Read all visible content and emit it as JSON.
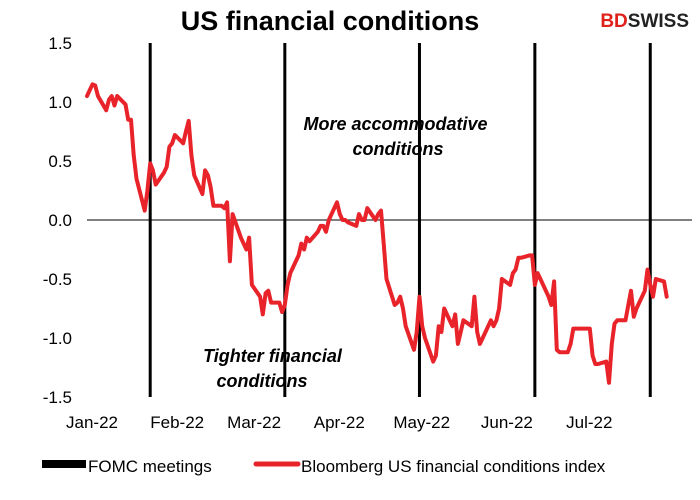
{
  "chart_data": {
    "type": "line",
    "title": "US financial conditions",
    "xlabel": "",
    "ylabel": "",
    "ylim": [
      -1.5,
      1.5
    ],
    "yticks": [
      -1.5,
      -1.0,
      -0.5,
      0.0,
      0.5,
      1.0,
      1.5
    ],
    "ytick_labels": [
      "-1.5",
      "-1.0",
      "-0.5",
      "0.0",
      "0.5",
      "1.0",
      "1.5"
    ],
    "x_range": [
      "2022-01-03",
      "2022-08-01"
    ],
    "xticks": [
      {
        "date": "2022-01-03",
        "label": "Jan-22"
      },
      {
        "date": "2022-02-03",
        "label": "Feb-22"
      },
      {
        "date": "2022-03-03",
        "label": "Mar-22"
      },
      {
        "date": "2022-04-03",
        "label": "Apr-22"
      },
      {
        "date": "2022-05-03",
        "label": "May-22"
      },
      {
        "date": "2022-06-03",
        "label": "Jun-22"
      },
      {
        "date": "2022-07-03",
        "label": "Jul-22"
      }
    ],
    "grid": false,
    "legend_position": "bottom",
    "annotations": [
      {
        "lines": [
          "More accommodative",
          "conditions"
        ]
      },
      {
        "lines": [
          "Tighter financial",
          "conditions"
        ]
      }
    ],
    "series": [
      {
        "name": "FOMC meetings",
        "type": "vertical-lines",
        "color": "#000000",
        "dates": [
          "2022-01-26",
          "2022-03-16",
          "2022-05-04",
          "2022-06-15",
          "2022-07-27"
        ]
      },
      {
        "name": "Bloomberg US financial conditions index",
        "type": "line",
        "color": "#e8232a",
        "points": [
          [
            "2022-01-03",
            1.05
          ],
          [
            "2022-01-04",
            1.1
          ],
          [
            "2022-01-05",
            1.15
          ],
          [
            "2022-01-06",
            1.14
          ],
          [
            "2022-01-07",
            1.05
          ],
          [
            "2022-01-10",
            0.93
          ],
          [
            "2022-01-11",
            1.02
          ],
          [
            "2022-01-12",
            1.05
          ],
          [
            "2022-01-13",
            0.97
          ],
          [
            "2022-01-14",
            1.05
          ],
          [
            "2022-01-17",
            0.98
          ],
          [
            "2022-01-18",
            0.85
          ],
          [
            "2022-01-19",
            0.85
          ],
          [
            "2022-01-20",
            0.55
          ],
          [
            "2022-01-21",
            0.35
          ],
          [
            "2022-01-24",
            0.08
          ],
          [
            "2022-01-25",
            0.25
          ],
          [
            "2022-01-26",
            0.48
          ],
          [
            "2022-01-27",
            0.42
          ],
          [
            "2022-01-28",
            0.3
          ],
          [
            "2022-01-31",
            0.4
          ],
          [
            "2022-02-01",
            0.45
          ],
          [
            "2022-02-02",
            0.62
          ],
          [
            "2022-02-03",
            0.65
          ],
          [
            "2022-02-04",
            0.72
          ],
          [
            "2022-02-07",
            0.65
          ],
          [
            "2022-02-08",
            0.75
          ],
          [
            "2022-02-09",
            0.84
          ],
          [
            "2022-02-10",
            0.55
          ],
          [
            "2022-02-11",
            0.38
          ],
          [
            "2022-02-14",
            0.22
          ],
          [
            "2022-02-15",
            0.42
          ],
          [
            "2022-02-16",
            0.38
          ],
          [
            "2022-02-17",
            0.28
          ],
          [
            "2022-02-18",
            0.12
          ],
          [
            "2022-02-21",
            0.12
          ],
          [
            "2022-02-22",
            0.1
          ],
          [
            "2022-02-23",
            0.15
          ],
          [
            "2022-02-24",
            -0.35
          ],
          [
            "2022-02-25",
            0.05
          ],
          [
            "2022-02-28",
            -0.15
          ],
          [
            "2022-03-01",
            -0.2
          ],
          [
            "2022-03-02",
            -0.25
          ],
          [
            "2022-03-03",
            -0.15
          ],
          [
            "2022-03-04",
            -0.55
          ],
          [
            "2022-03-07",
            -0.65
          ],
          [
            "2022-03-08",
            -0.8
          ],
          [
            "2022-03-09",
            -0.62
          ],
          [
            "2022-03-10",
            -0.6
          ],
          [
            "2022-03-11",
            -0.7
          ],
          [
            "2022-03-14",
            -0.7
          ],
          [
            "2022-03-15",
            -0.78
          ],
          [
            "2022-03-16",
            -0.72
          ],
          [
            "2022-03-17",
            -0.55
          ],
          [
            "2022-03-18",
            -0.45
          ],
          [
            "2022-03-21",
            -0.3
          ],
          [
            "2022-03-22",
            -0.2
          ],
          [
            "2022-03-23",
            -0.25
          ],
          [
            "2022-03-24",
            -0.15
          ],
          [
            "2022-03-25",
            -0.18
          ],
          [
            "2022-03-28",
            -0.1
          ],
          [
            "2022-03-29",
            -0.05
          ],
          [
            "2022-03-30",
            -0.05
          ],
          [
            "2022-03-31",
            -0.1
          ],
          [
            "2022-04-01",
            0.0
          ],
          [
            "2022-04-04",
            0.15
          ],
          [
            "2022-04-05",
            0.05
          ],
          [
            "2022-04-06",
            0.0
          ],
          [
            "2022-04-07",
            0.0
          ],
          [
            "2022-04-08",
            -0.02
          ],
          [
            "2022-04-11",
            -0.05
          ],
          [
            "2022-04-12",
            0.05
          ],
          [
            "2022-04-13",
            0.0
          ],
          [
            "2022-04-14",
            0.0
          ],
          [
            "2022-04-15",
            0.1
          ],
          [
            "2022-04-18",
            0.0
          ],
          [
            "2022-04-19",
            0.05
          ],
          [
            "2022-04-20",
            0.08
          ],
          [
            "2022-04-21",
            -0.2
          ],
          [
            "2022-04-22",
            -0.5
          ],
          [
            "2022-04-25",
            -0.72
          ],
          [
            "2022-04-26",
            -0.7
          ],
          [
            "2022-04-27",
            -0.65
          ],
          [
            "2022-04-28",
            -0.75
          ],
          [
            "2022-04-29",
            -0.9
          ],
          [
            "2022-05-02",
            -1.1
          ],
          [
            "2022-05-03",
            -0.95
          ],
          [
            "2022-05-04",
            -0.65
          ],
          [
            "2022-05-05",
            -0.9
          ],
          [
            "2022-05-06",
            -1.0
          ],
          [
            "2022-05-09",
            -1.2
          ],
          [
            "2022-05-10",
            -1.15
          ],
          [
            "2022-05-11",
            -0.9
          ],
          [
            "2022-05-12",
            -0.95
          ],
          [
            "2022-05-13",
            -0.75
          ],
          [
            "2022-05-16",
            -0.9
          ],
          [
            "2022-05-17",
            -0.8
          ],
          [
            "2022-05-18",
            -1.05
          ],
          [
            "2022-05-19",
            -0.95
          ],
          [
            "2022-05-20",
            -0.85
          ],
          [
            "2022-05-23",
            -0.9
          ],
          [
            "2022-05-24",
            -0.65
          ],
          [
            "2022-05-25",
            -0.95
          ],
          [
            "2022-05-26",
            -1.05
          ],
          [
            "2022-05-27",
            -1.0
          ],
          [
            "2022-05-30",
            -0.85
          ],
          [
            "2022-05-31",
            -0.9
          ],
          [
            "2022-06-01",
            -0.85
          ],
          [
            "2022-06-02",
            -0.75
          ],
          [
            "2022-06-03",
            -0.5
          ],
          [
            "2022-06-06",
            -0.55
          ],
          [
            "2022-06-07",
            -0.45
          ],
          [
            "2022-06-08",
            -0.42
          ],
          [
            "2022-06-09",
            -0.32
          ],
          [
            "2022-06-10",
            -0.32
          ],
          [
            "2022-06-13",
            -0.3
          ],
          [
            "2022-06-14",
            -0.3
          ],
          [
            "2022-06-15",
            -0.55
          ],
          [
            "2022-06-16",
            -0.45
          ],
          [
            "2022-06-17",
            -0.5
          ],
          [
            "2022-06-20",
            -0.65
          ],
          [
            "2022-06-21",
            -0.72
          ],
          [
            "2022-06-22",
            -0.52
          ],
          [
            "2022-06-23",
            -1.1
          ],
          [
            "2022-06-24",
            -1.12
          ],
          [
            "2022-06-27",
            -1.12
          ],
          [
            "2022-06-28",
            -1.05
          ],
          [
            "2022-06-29",
            -0.92
          ],
          [
            "2022-06-30",
            -0.92
          ],
          [
            "2022-07-01",
            -0.92
          ],
          [
            "2022-07-05",
            -0.92
          ],
          [
            "2022-07-06",
            -1.15
          ],
          [
            "2022-07-07",
            -1.22
          ],
          [
            "2022-07-08",
            -1.22
          ],
          [
            "2022-07-11",
            -1.2
          ],
          [
            "2022-07-12",
            -1.38
          ],
          [
            "2022-07-13",
            -1.05
          ],
          [
            "2022-07-14",
            -0.88
          ],
          [
            "2022-07-15",
            -0.85
          ],
          [
            "2022-07-18",
            -0.85
          ],
          [
            "2022-07-19",
            -0.72
          ],
          [
            "2022-07-20",
            -0.6
          ],
          [
            "2022-07-21",
            -0.82
          ],
          [
            "2022-07-22",
            -0.75
          ],
          [
            "2022-07-25",
            -0.6
          ],
          [
            "2022-07-26",
            -0.42
          ],
          [
            "2022-07-27",
            -0.55
          ],
          [
            "2022-07-28",
            -0.65
          ],
          [
            "2022-07-29",
            -0.5
          ],
          [
            "2022-08-01",
            -0.52
          ],
          [
            "2022-08-02",
            -0.65
          ]
        ]
      }
    ]
  },
  "logo": {
    "part1": "BD",
    "part2": "SWISS"
  }
}
